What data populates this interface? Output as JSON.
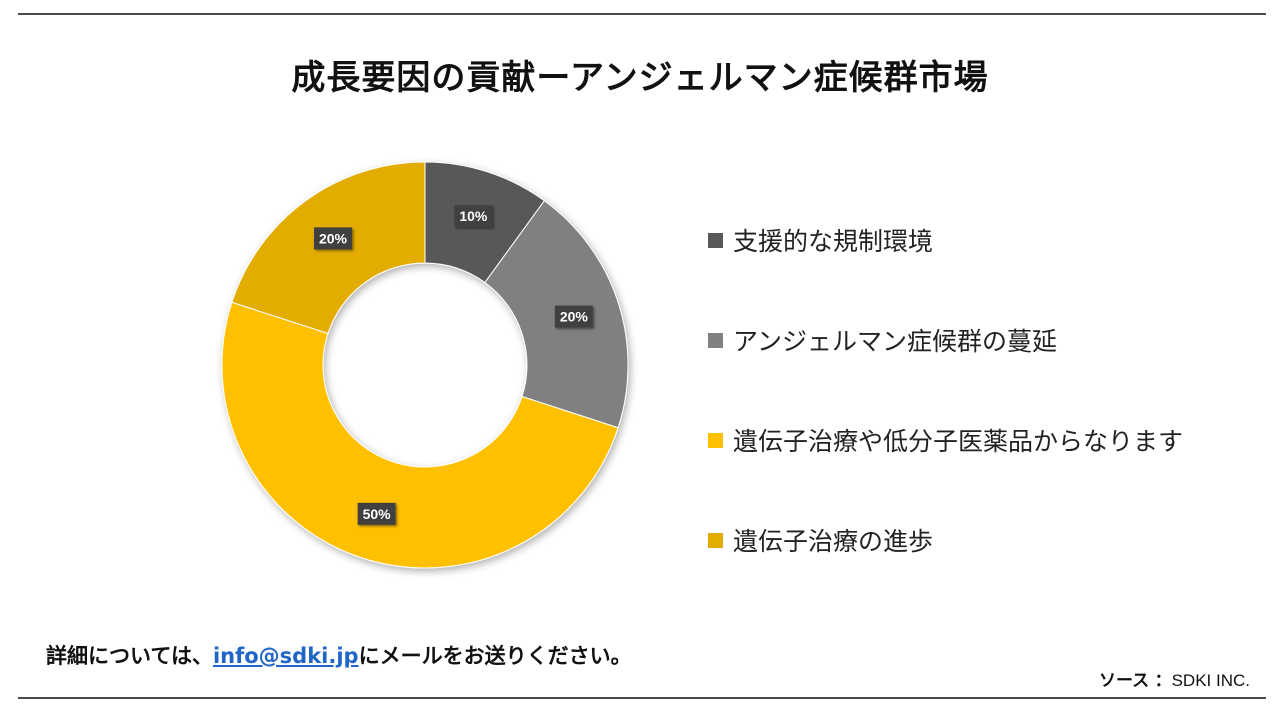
{
  "title": "成長要因の貢献ーアンジェルマン症候群市場",
  "footer": {
    "prefix": "詳細については、",
    "email": "info@sdki.jp",
    "suffix": "にメールをお送りください。"
  },
  "source": {
    "label": "ソース",
    "colon": "：",
    "value": "SDKI INC."
  },
  "chart_data": {
    "type": "pie",
    "variant": "donut",
    "title": "成長要因の貢献ーアンジェルマン症候群市場",
    "legend_position": "right",
    "slices": [
      {
        "label": "支援的な規制環境",
        "value": 10,
        "display": "10%",
        "color": "#595959"
      },
      {
        "label": "アンジェルマン症候群の蔓延",
        "value": 20,
        "display": "20%",
        "color": "#808080"
      },
      {
        "label": "遺伝子治療や低分子医薬品からなります",
        "value": 50,
        "display": "50%",
        "color": "#FFC000"
      },
      {
        "label": "遺伝子治療の進歩",
        "value": 20,
        "display": "20%",
        "color": "#E2AC00"
      }
    ]
  }
}
